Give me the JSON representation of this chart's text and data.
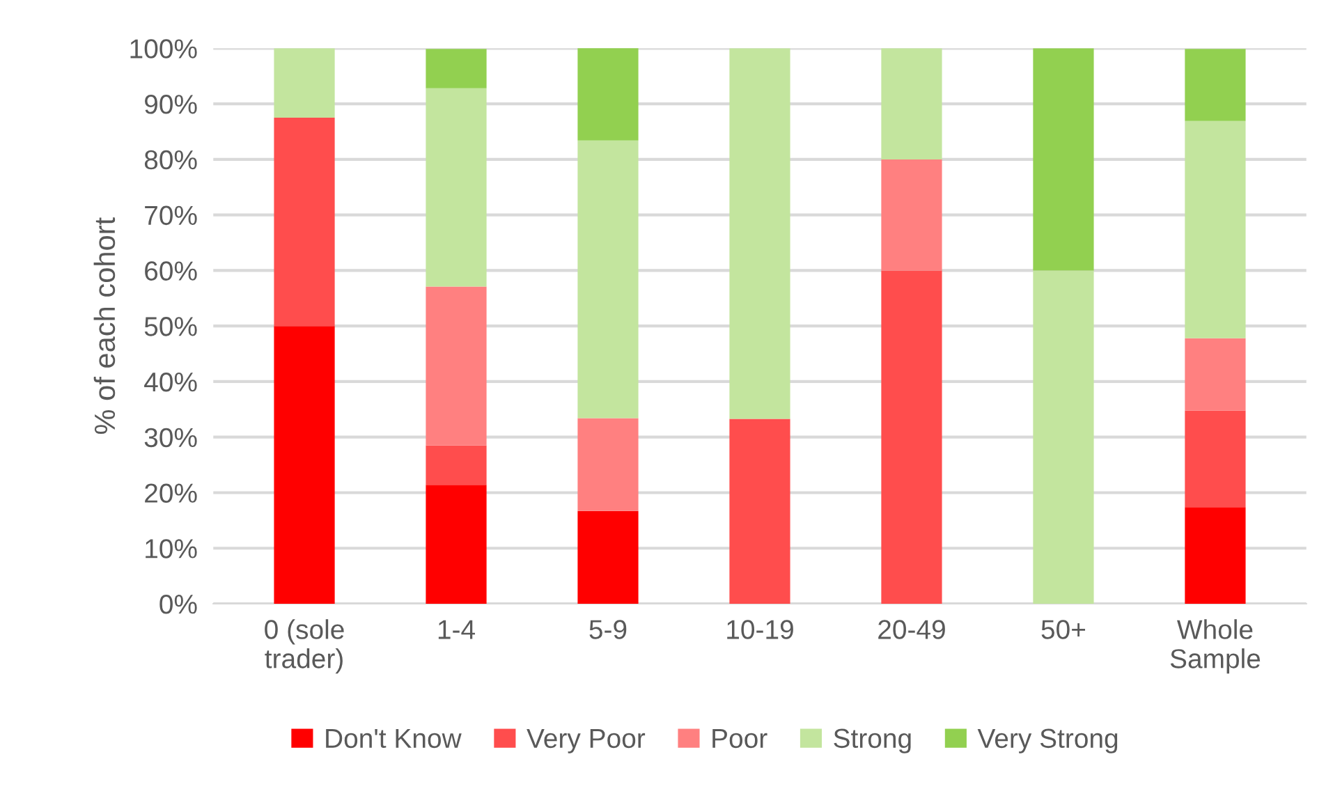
{
  "chart_data": {
    "type": "bar",
    "stacked": true,
    "ylabel": "% of each cohort",
    "categories": [
      "0 (sole\ntrader)",
      "1-4",
      "5-9",
      "10-19",
      "20-49",
      "50+",
      "Whole\nSample"
    ],
    "series": [
      {
        "name": "Don't Know",
        "color": "#ff0000",
        "values": [
          50,
          21.4,
          16.7,
          0,
          0,
          0,
          17.4
        ]
      },
      {
        "name": "Very Poor",
        "color": "#ff4d4d",
        "values": [
          37.5,
          7.1,
          0,
          33.3,
          60,
          0,
          17.4
        ]
      },
      {
        "name": "Poor",
        "color": "#ff8080",
        "values": [
          0,
          28.6,
          16.7,
          0,
          20,
          0,
          13.0
        ]
      },
      {
        "name": "Strong",
        "color": "#c3e59e",
        "values": [
          12.5,
          35.7,
          50,
          66.7,
          20,
          60,
          39.1
        ]
      },
      {
        "name": "Very Strong",
        "color": "#92d050",
        "values": [
          0,
          7.1,
          16.7,
          0,
          0,
          40,
          13.0
        ]
      }
    ],
    "ylim": [
      0,
      100
    ],
    "yticks": [
      {
        "value": 0,
        "label": "0%"
      },
      {
        "value": 10,
        "label": "10%"
      },
      {
        "value": 20,
        "label": "20%"
      },
      {
        "value": 30,
        "label": "30%"
      },
      {
        "value": 40,
        "label": "40%"
      },
      {
        "value": 50,
        "label": "50%"
      },
      {
        "value": 60,
        "label": "60%"
      },
      {
        "value": 70,
        "label": "70%"
      },
      {
        "value": 80,
        "label": "80%"
      },
      {
        "value": 90,
        "label": "90%"
      },
      {
        "value": 100,
        "label": "100%"
      }
    ],
    "grid": "y",
    "legend": "bottom"
  }
}
